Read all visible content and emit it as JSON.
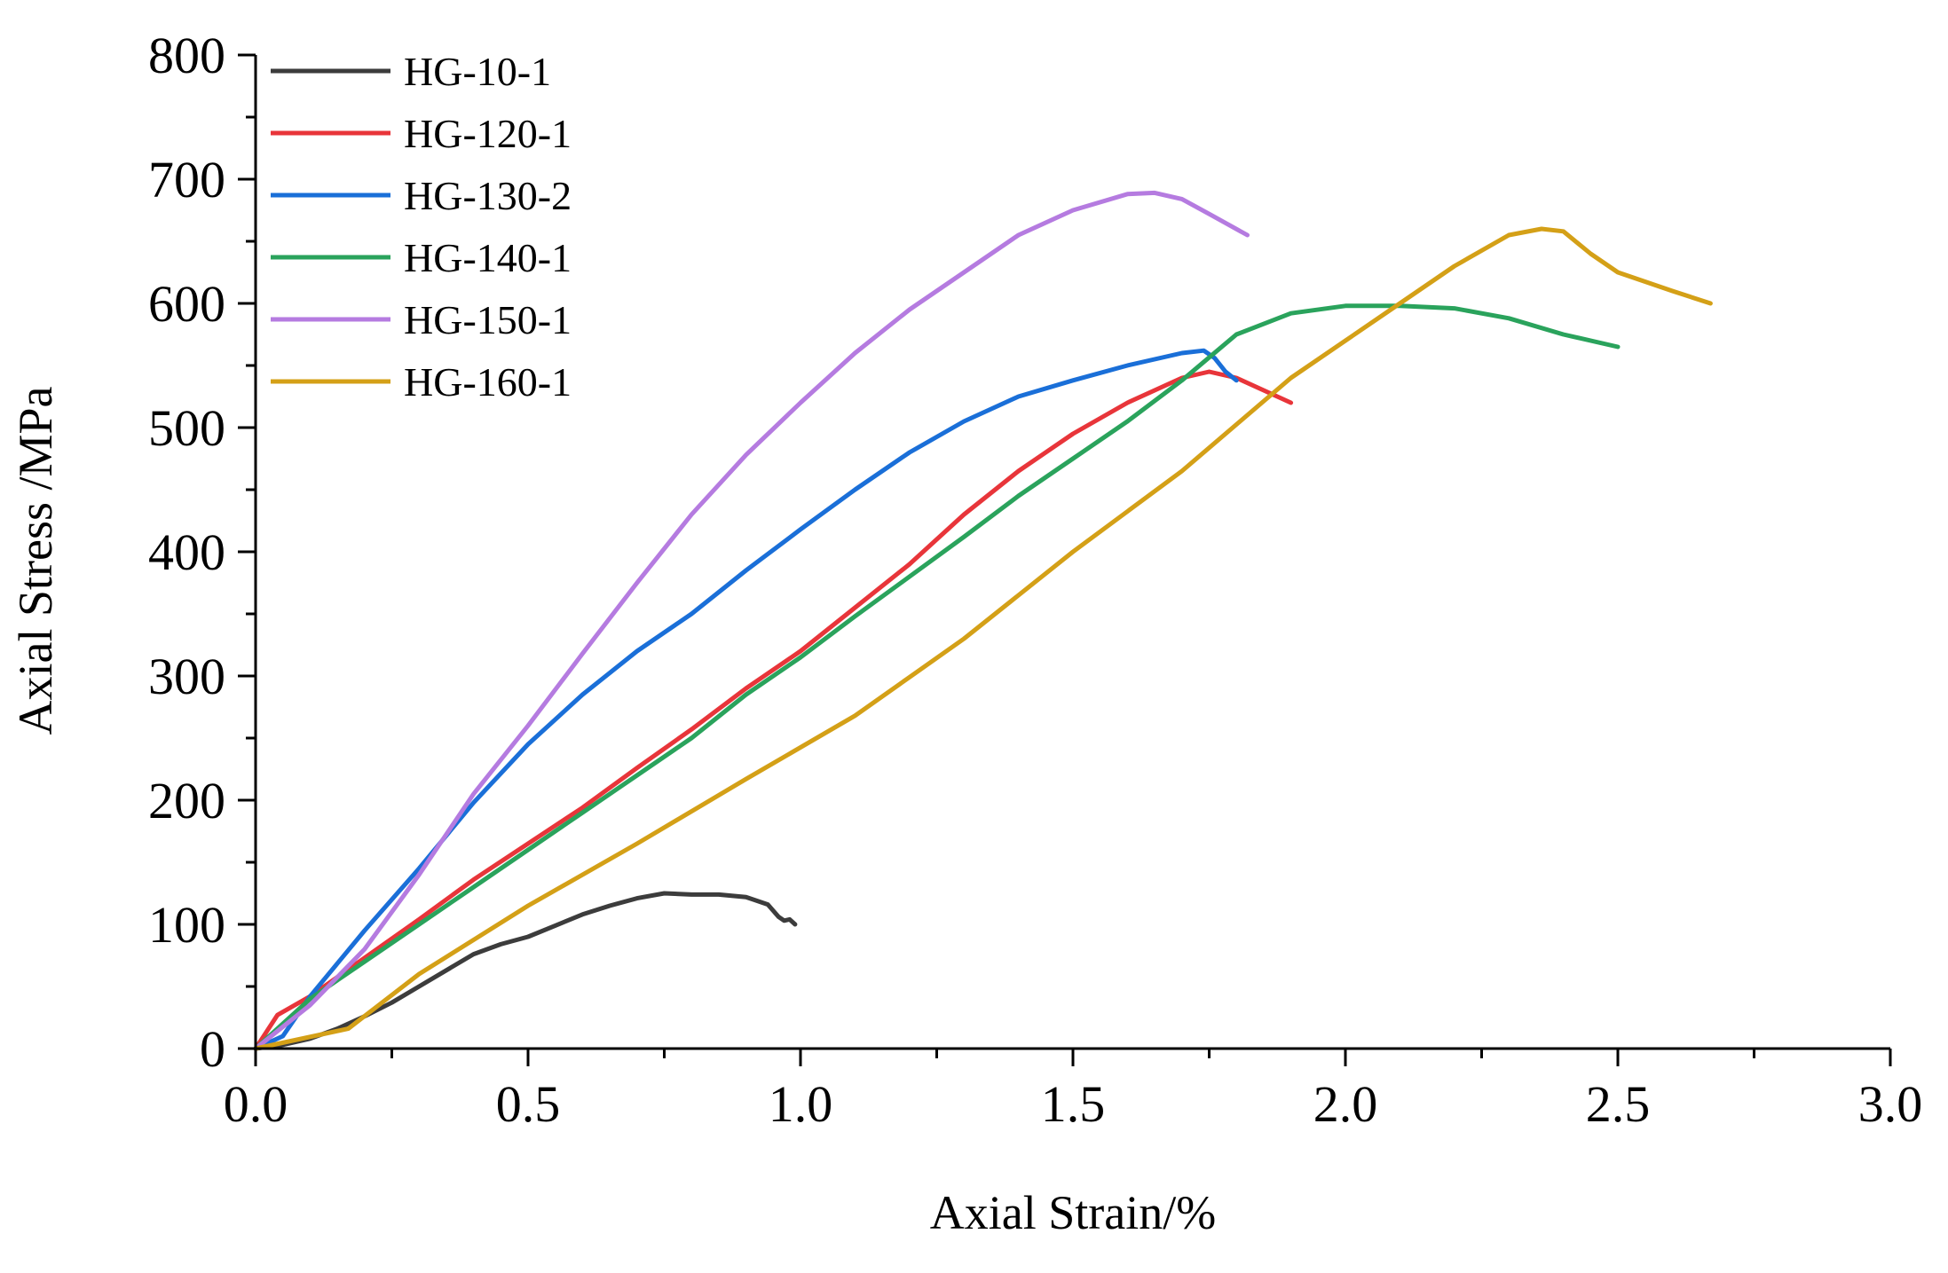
{
  "chart_data": {
    "type": "line",
    "title": "",
    "xlabel": "Axial Strain/%",
    "ylabel": "Axial Stress /MPa",
    "xlim": [
      0,
      3.0
    ],
    "ylim": [
      0,
      800
    ],
    "xticks": [
      "0.0",
      "0.5",
      "1.0",
      "1.5",
      "2.0",
      "2.5",
      "3.0"
    ],
    "yticks": [
      "0",
      "100",
      "200",
      "300",
      "400",
      "500",
      "600",
      "700",
      "800"
    ],
    "grid": false,
    "legend_position": "top-left",
    "series": [
      {
        "name": "HG-10-1",
        "color": "#3c3c3c",
        "x": [
          0,
          0.05,
          0.1,
          0.15,
          0.2,
          0.25,
          0.3,
          0.35,
          0.4,
          0.45,
          0.5,
          0.55,
          0.6,
          0.65,
          0.7,
          0.75,
          0.8,
          0.85,
          0.9,
          0.94,
          0.96,
          0.97,
          0.98,
          0.99
        ],
        "y": [
          0,
          3,
          8,
          16,
          26,
          37,
          50,
          63,
          76,
          84,
          90,
          99,
          108,
          115,
          121,
          125,
          124,
          124,
          122,
          116,
          106,
          103,
          104,
          100
        ]
      },
      {
        "name": "HG-120-1",
        "color": "#e8353a",
        "x": [
          0,
          0.04,
          0.1,
          0.2,
          0.3,
          0.4,
          0.5,
          0.6,
          0.7,
          0.8,
          0.9,
          1.0,
          1.1,
          1.2,
          1.3,
          1.4,
          1.5,
          1.6,
          1.7,
          1.75,
          1.8,
          1.85,
          1.9
        ],
        "y": [
          0,
          27,
          42,
          73,
          104,
          136,
          165,
          194,
          226,
          257,
          290,
          320,
          355,
          390,
          430,
          465,
          495,
          520,
          540,
          545,
          540,
          530,
          520
        ]
      },
      {
        "name": "HG-130-2",
        "color": "#1a6fd8",
        "x": [
          0,
          0.05,
          0.1,
          0.2,
          0.3,
          0.4,
          0.5,
          0.6,
          0.7,
          0.8,
          0.9,
          1.0,
          1.1,
          1.2,
          1.3,
          1.4,
          1.5,
          1.6,
          1.7,
          1.74,
          1.76,
          1.78,
          1.8
        ],
        "y": [
          0,
          10,
          42,
          95,
          145,
          198,
          245,
          285,
          320,
          350,
          385,
          418,
          450,
          480,
          505,
          525,
          538,
          550,
          560,
          562,
          556,
          545,
          538
        ]
      },
      {
        "name": "HG-140-1",
        "color": "#2aa35c",
        "x": [
          0,
          0.1,
          0.2,
          0.3,
          0.4,
          0.5,
          0.6,
          0.7,
          0.8,
          0.9,
          1.0,
          1.1,
          1.2,
          1.3,
          1.4,
          1.5,
          1.6,
          1.7,
          1.8,
          1.9,
          2.0,
          2.1,
          2.2,
          2.3,
          2.4,
          2.5
        ],
        "y": [
          0,
          40,
          70,
          100,
          130,
          160,
          190,
          220,
          250,
          285,
          315,
          348,
          380,
          412,
          445,
          475,
          505,
          538,
          575,
          592,
          598,
          598,
          596,
          588,
          575,
          565
        ]
      },
      {
        "name": "HG-150-1",
        "color": "#b57be0",
        "x": [
          0,
          0.1,
          0.2,
          0.3,
          0.4,
          0.5,
          0.6,
          0.7,
          0.8,
          0.9,
          1.0,
          1.1,
          1.2,
          1.3,
          1.4,
          1.5,
          1.6,
          1.65,
          1.7,
          1.75,
          1.82
        ],
        "y": [
          0,
          35,
          80,
          140,
          205,
          260,
          318,
          375,
          430,
          478,
          520,
          560,
          595,
          625,
          655,
          675,
          688,
          689,
          684,
          672,
          655
        ]
      },
      {
        "name": "HG-160-1",
        "color": "#d4a017",
        "x": [
          0,
          0.17,
          0.3,
          0.5,
          0.7,
          0.9,
          1.1,
          1.3,
          1.5,
          1.7,
          1.9,
          2.1,
          2.2,
          2.3,
          2.36,
          2.4,
          2.45,
          2.5,
          2.6,
          2.67
        ],
        "y": [
          0,
          16,
          60,
          115,
          165,
          217,
          268,
          330,
          400,
          465,
          540,
          600,
          630,
          655,
          660,
          658,
          640,
          625,
          610,
          600
        ]
      }
    ]
  }
}
